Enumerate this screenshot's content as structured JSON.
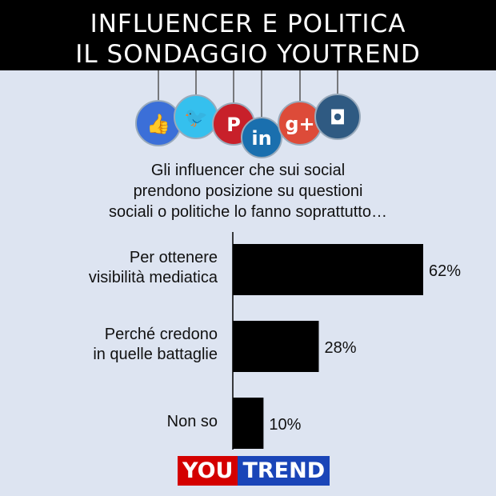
{
  "header": {
    "line1": "INFLUENCER E POLITICA",
    "line2": "IL SONDAGGIO YOUTREND"
  },
  "icons": [
    {
      "name": "facebook-like-icon",
      "color": "#3b6fd8"
    },
    {
      "name": "twitter-icon",
      "color": "#35c0ee"
    },
    {
      "name": "pinterest-icon",
      "color": "#c8202a"
    },
    {
      "name": "linkedin-icon",
      "color": "#1a6fae"
    },
    {
      "name": "google-plus-icon",
      "color": "#dd4b39"
    },
    {
      "name": "instagram-icon",
      "color": "#2f5a82"
    }
  ],
  "question": [
    "Gli influencer che sui social",
    "prendono posizione su questioni",
    "sociali o politiche lo fanno soprattutto…"
  ],
  "chart_data": {
    "type": "bar",
    "orientation": "horizontal",
    "categories": [
      [
        "Per ottenere",
        "visibilità mediatica"
      ],
      [
        "Perché credono",
        "in quelle battaglie"
      ],
      [
        "Non so"
      ]
    ],
    "values": [
      62,
      28,
      10
    ],
    "value_labels": [
      "62%",
      "28%",
      "10%"
    ],
    "xlim": [
      0,
      100
    ],
    "bar_color": "#000000",
    "grid": false
  },
  "logo": {
    "left": "YOU",
    "right": "TREND"
  }
}
